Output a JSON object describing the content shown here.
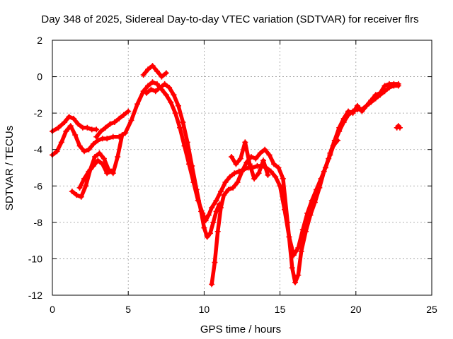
{
  "chart_data": {
    "type": "scatter",
    "title": "Day 348 of 2025, Sidereal Day-to-day VTEC variation (SDTVAR) for receiver flrs",
    "xlabel": "GPS time / hours",
    "ylabel": "SDTVAR / TECUs",
    "xlim": [
      0,
      25
    ],
    "ylim": [
      -12,
      2
    ],
    "xticks": [
      "0",
      "5",
      "10",
      "15",
      "20",
      "25"
    ],
    "yticks": [
      "2",
      "0",
      "-2",
      "-4",
      "-6",
      "-8",
      "-10",
      "-12"
    ],
    "grid": true,
    "legend": "none",
    "color": "#ff0000",
    "series": [
      {
        "x": [
          0.0,
          0.3,
          0.6,
          0.9,
          1.2,
          1.5,
          1.8,
          2.1,
          2.4,
          2.7,
          3.0,
          3.3,
          3.6,
          4.0,
          4.4,
          4.8,
          5.2,
          5.6,
          6.0,
          6.3,
          6.6,
          6.9,
          7.2,
          7.5,
          7.8,
          8.1,
          8.4,
          8.7,
          9.0,
          9.3,
          9.6,
          9.9,
          10.1,
          10.3,
          10.5,
          10.8,
          11.1,
          11.4,
          11.7,
          12.0,
          12.3,
          12.6,
          12.9,
          13.2,
          13.5,
          13.8,
          14.1,
          14.4,
          14.7,
          15.0,
          15.3,
          15.6,
          15.9,
          16.2,
          16.5,
          16.8,
          17.1,
          17.4,
          17.7,
          18.0,
          18.3,
          18.6,
          18.9,
          19.2,
          19.5,
          19.8,
          20.1,
          20.4,
          20.7,
          21.0,
          21.3,
          21.6,
          21.9,
          22.2,
          22.5,
          22.8
        ],
        "y": [
          -4.3,
          -4.1,
          -3.6,
          -3.0,
          -2.7,
          -3.2,
          -3.8,
          -4.1,
          -4.0,
          -3.7,
          -3.5,
          -3.4,
          -3.4,
          -3.3,
          -3.3,
          -3.1,
          -2.4,
          -1.5,
          -0.8,
          -0.5,
          -0.3,
          -0.4,
          -0.7,
          -1.0,
          -1.4,
          -2.0,
          -2.8,
          -3.8,
          -4.8,
          -5.8,
          -6.8,
          -7.5,
          -7.9,
          -7.6,
          -7.2,
          -6.8,
          -6.3,
          -5.8,
          -5.5,
          -5.3,
          -5.2,
          -5.1,
          -5.0,
          -5.0,
          -4.9,
          -4.9,
          -5.0,
          -5.2,
          -5.5,
          -6.0,
          -7.3,
          -8.8,
          -9.8,
          -9.4,
          -8.4,
          -7.5,
          -6.8,
          -6.2,
          -5.6,
          -5.0,
          -4.3,
          -3.6,
          -3.0,
          -2.5,
          -2.1,
          -1.9,
          -1.8,
          -1.8,
          -1.6,
          -1.4,
          -1.2,
          -1.0,
          -0.8,
          -0.6,
          -0.5,
          -0.5
        ]
      },
      {
        "x": [
          0.0,
          0.4,
          0.8,
          1.1,
          1.4,
          1.7,
          2.0,
          2.3,
          2.6,
          2.9
        ],
        "y": [
          -3.0,
          -2.8,
          -2.5,
          -2.2,
          -2.3,
          -2.6,
          -2.8,
          -2.8,
          -2.9,
          -2.9
        ]
      },
      {
        "x": [
          1.3,
          1.6,
          1.9,
          2.2,
          2.5,
          2.8,
          3.1,
          3.4,
          3.7,
          4.0,
          4.3,
          4.6
        ],
        "y": [
          -6.3,
          -6.5,
          -6.6,
          -6.0,
          -5.1,
          -4.4,
          -4.2,
          -4.5,
          -5.1,
          -5.3,
          -4.4,
          -3.2
        ]
      },
      {
        "x": [
          1.8,
          2.1,
          2.4,
          2.7,
          3.0,
          3.3,
          3.6,
          3.9
        ],
        "y": [
          -6.1,
          -5.6,
          -5.2,
          -4.9,
          -4.6,
          -4.8,
          -5.3,
          -5.2
        ]
      },
      {
        "x": [
          2.9,
          3.2,
          3.5,
          3.8,
          4.1,
          4.4,
          4.7,
          5.0
        ],
        "y": [
          -3.3,
          -3.0,
          -2.8,
          -2.6,
          -2.5,
          -2.3,
          -2.1,
          -1.9
        ]
      },
      {
        "x": [
          6.0,
          6.3,
          6.6,
          6.9,
          7.2,
          7.5
        ],
        "y": [
          0.1,
          0.4,
          0.6,
          0.3,
          0.0,
          0.2
        ]
      },
      {
        "x": [
          6.2,
          6.5,
          6.8,
          7.1,
          7.4,
          7.7,
          8.0,
          8.3,
          8.6,
          8.9,
          9.2,
          9.5,
          9.8,
          10.0,
          10.2,
          10.4,
          10.6,
          10.8,
          11.0
        ],
        "y": [
          -0.9,
          -0.7,
          -0.8,
          -0.6,
          -0.4,
          -0.6,
          -1.0,
          -1.6,
          -2.5,
          -3.6,
          -4.9,
          -6.2,
          -7.4,
          -8.3,
          -8.8,
          -8.6,
          -8.0,
          -7.4,
          -7.0
        ]
      },
      {
        "x": [
          10.5,
          10.7,
          10.9,
          11.1,
          11.3,
          11.6,
          11.9,
          12.2,
          12.5,
          12.8,
          13.1,
          13.4,
          13.7,
          14.0,
          14.3,
          14.6,
          14.9,
          15.2,
          15.5,
          15.8,
          16.0,
          16.2,
          16.4,
          16.7,
          17.0,
          17.3,
          17.6,
          17.9,
          18.2,
          18.5,
          18.8
        ],
        "y": [
          -11.4,
          -10.2,
          -8.5,
          -7.2,
          -6.5,
          -6.2,
          -6.1,
          -5.8,
          -5.2,
          -4.7,
          -4.4,
          -4.5,
          -4.2,
          -4.0,
          -4.3,
          -4.8,
          -5.0,
          -5.6,
          -8.0,
          -10.5,
          -11.3,
          -10.9,
          -9.6,
          -8.5,
          -7.6,
          -6.9,
          -6.1,
          -5.2,
          -4.5,
          -3.8,
          -3.5
        ]
      },
      {
        "x": [
          11.8,
          12.1,
          12.4,
          12.7,
          13.0,
          13.3,
          13.6,
          13.9,
          14.2
        ],
        "y": [
          -4.4,
          -4.8,
          -4.5,
          -3.6,
          -4.8,
          -5.6,
          -5.3,
          -4.6,
          -5.4
        ]
      },
      {
        "x": [
          18.3,
          18.6,
          18.9,
          19.2,
          19.5,
          19.8,
          20.1,
          20.4,
          20.7,
          21.0,
          21.3,
          21.6,
          21.9,
          22.2,
          22.5,
          22.8
        ],
        "y": [
          -4.2,
          -3.5,
          -2.8,
          -2.3,
          -1.9,
          -2.0,
          -1.6,
          -1.9,
          -1.6,
          -1.3,
          -1.0,
          -0.9,
          -0.5,
          -0.4,
          -0.4,
          -0.4
        ]
      },
      {
        "x": [
          22.7,
          22.8,
          22.9
        ],
        "y": [
          -2.8,
          -2.7,
          -2.8
        ]
      }
    ]
  }
}
